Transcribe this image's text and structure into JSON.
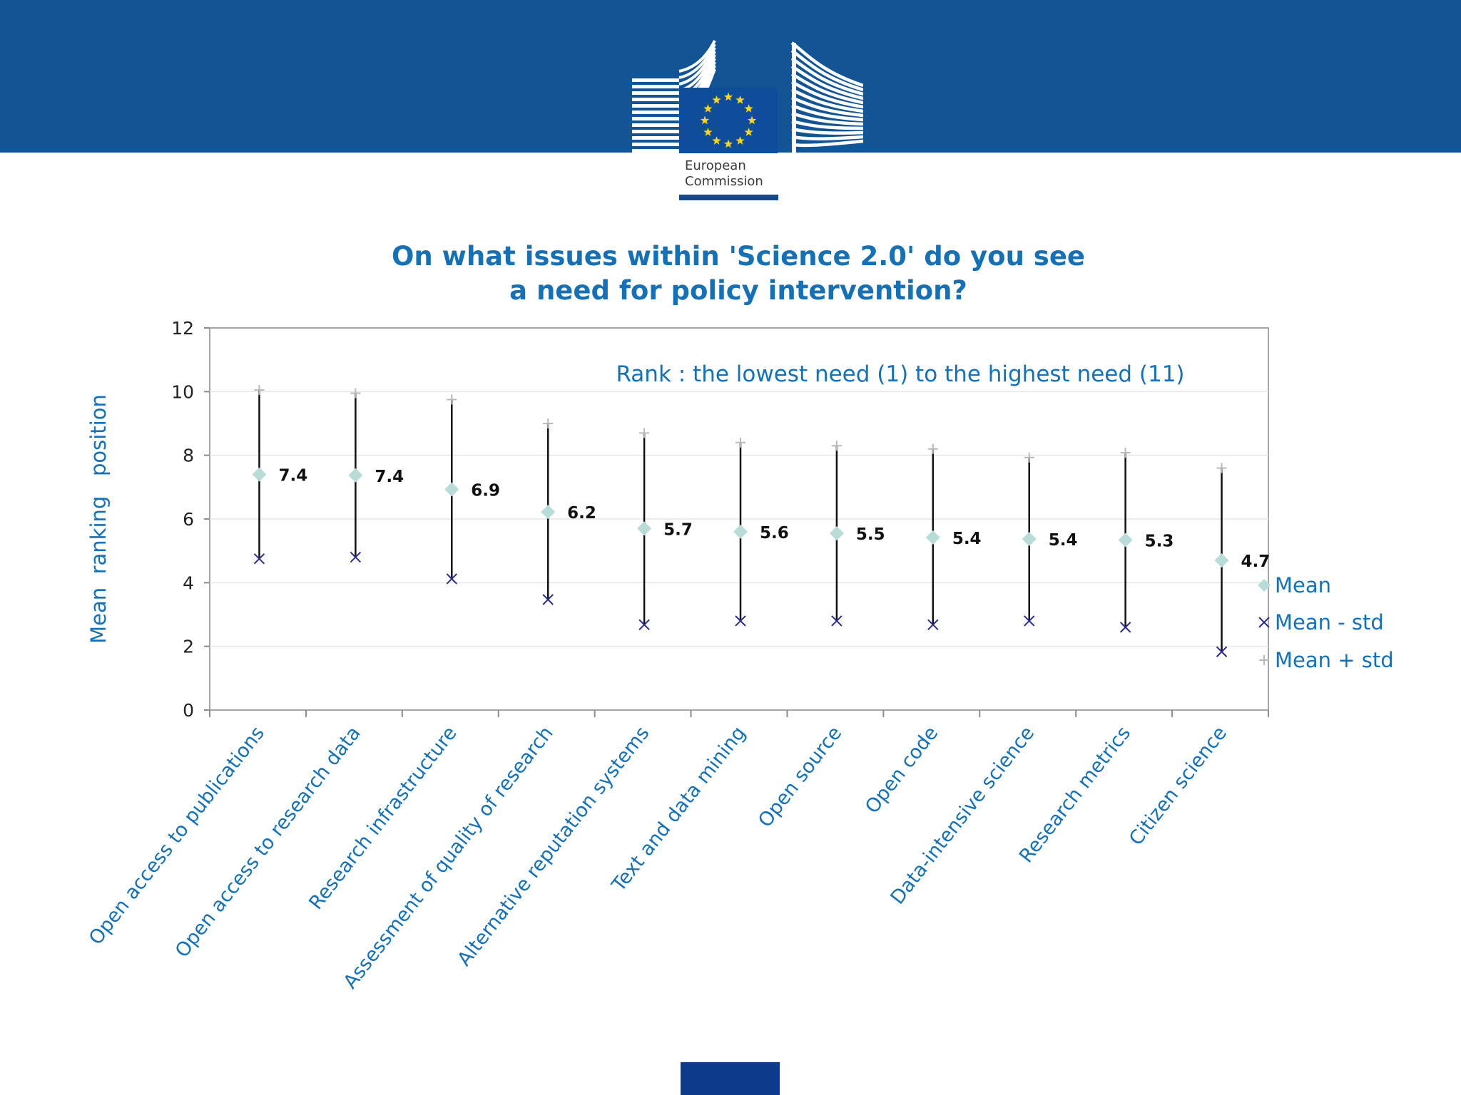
{
  "logo": {
    "line1": "European",
    "line2": "Commission",
    "blue": "#0f4c9a",
    "header_blue": "#135494",
    "star_color": "#ffd617"
  },
  "chart_data": {
    "type": "scatter",
    "title_line1": "On what issues within 'Science 2.0' do you see",
    "title_line2": "a need for policy intervention?",
    "subtitle": "Rank : the lowest need (1) to the highest need (11)",
    "xlabel": "",
    "ylabel": "Mean  ranking   position",
    "ylim": [
      0,
      12
    ],
    "yticks": [
      0,
      2,
      4,
      6,
      8,
      10,
      12
    ],
    "grid": true,
    "legend_position": "right",
    "categories": [
      "Open access  to  publications",
      "Open access  to research  data",
      "Research  infrastructure",
      "Assessment  of quality  of research",
      "Alternative  reputation  systems",
      "Text and  data mining",
      "Open source",
      "Open code",
      "Data-intensive science",
      "Research metrics",
      "Citizen science"
    ],
    "data_labels": [
      "7.4",
      "7.4",
      "6.9",
      "6.2",
      "5.7",
      "5.6",
      "5.5",
      "5.4",
      "5.4",
      "5.3",
      "4.7"
    ],
    "series": [
      {
        "name": "Mean",
        "marker": "diamond",
        "color": "#b9dcd9",
        "values": [
          7.4,
          7.37,
          6.93,
          6.22,
          5.7,
          5.6,
          5.55,
          5.42,
          5.37,
          5.34,
          4.7
        ]
      },
      {
        "name": "Mean - std",
        "marker": "x",
        "color": "#2b2c8c",
        "values": [
          4.75,
          4.8,
          4.12,
          3.47,
          2.68,
          2.8,
          2.8,
          2.68,
          2.8,
          2.6,
          1.83
        ]
      },
      {
        "name": "Mean + std",
        "marker": "plus",
        "color": "#b8b8b8",
        "values": [
          10.05,
          9.95,
          9.75,
          9.0,
          8.7,
          8.4,
          8.3,
          8.2,
          7.93,
          8.08,
          7.6
        ]
      }
    ]
  }
}
